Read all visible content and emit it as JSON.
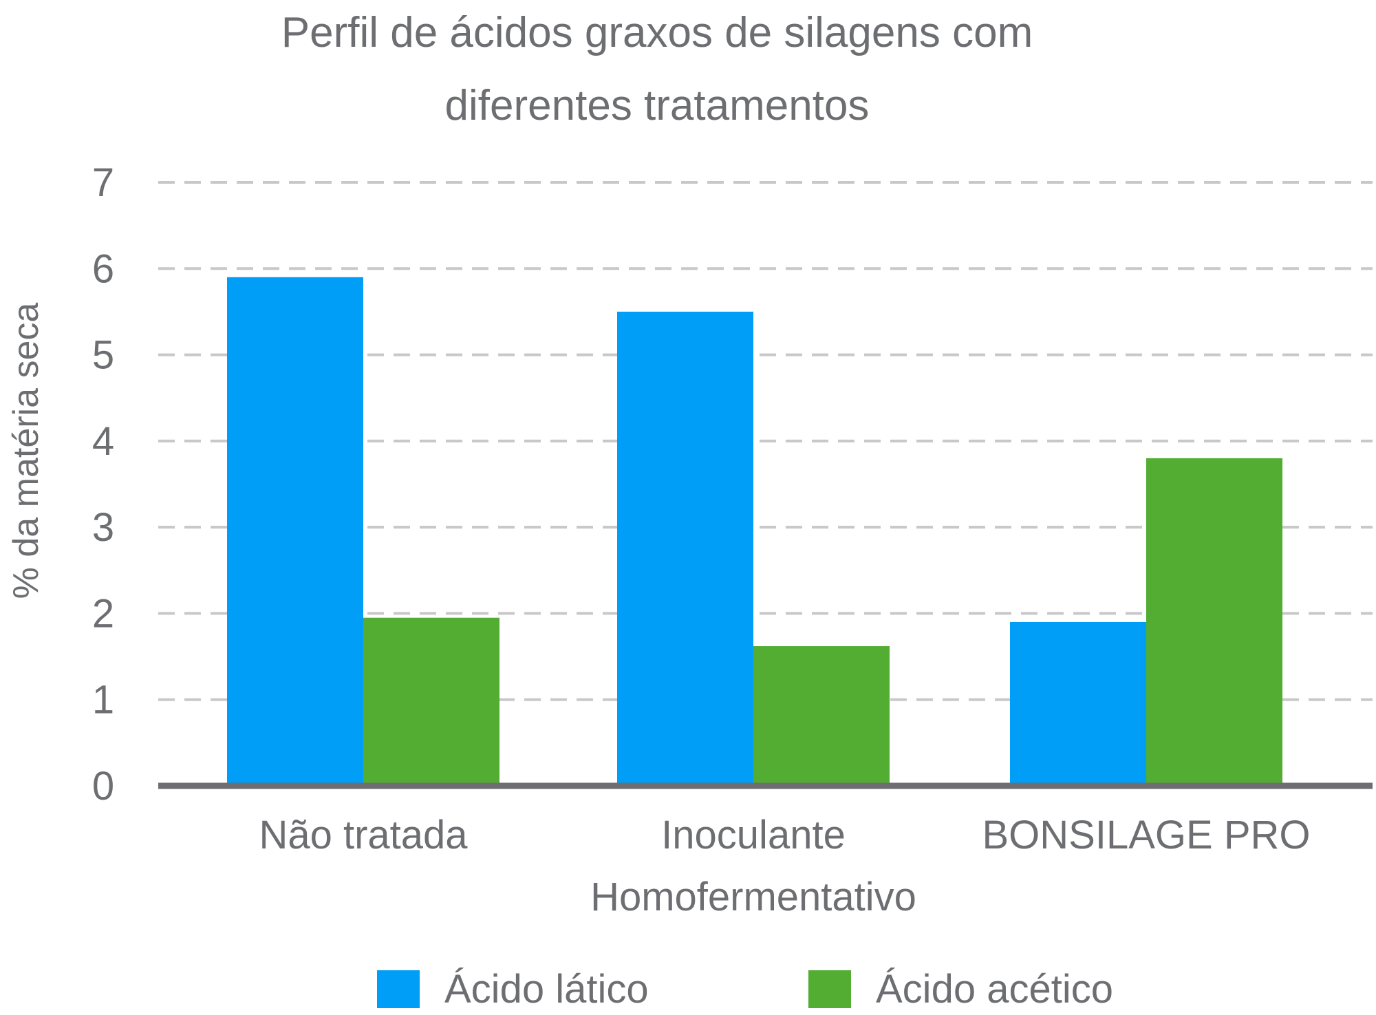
{
  "chart_data": {
    "type": "bar",
    "title_lines": [
      "Perfil de ácidos graxos de silagens com",
      "diferentes tratamentos"
    ],
    "ylabel": "% da matéria seca",
    "xlabel": "",
    "ylim": [
      0,
      7
    ],
    "yticks": [
      "0",
      "1",
      "2",
      "3",
      "4",
      "5",
      "6",
      "7"
    ],
    "grid": true,
    "legend_position": "bottom",
    "categories": [
      [
        "Não tratada"
      ],
      [
        "Inoculante",
        "Homofermentativo"
      ],
      [
        "BONSILAGE  PRO"
      ]
    ],
    "series": [
      {
        "name": "Ácido lático",
        "color": "#009ef7",
        "values": [
          5.9,
          5.5,
          1.9
        ]
      },
      {
        "name": "Ácido acético",
        "color": "#52ad32",
        "values": [
          1.95,
          1.62,
          3.8
        ]
      }
    ]
  }
}
